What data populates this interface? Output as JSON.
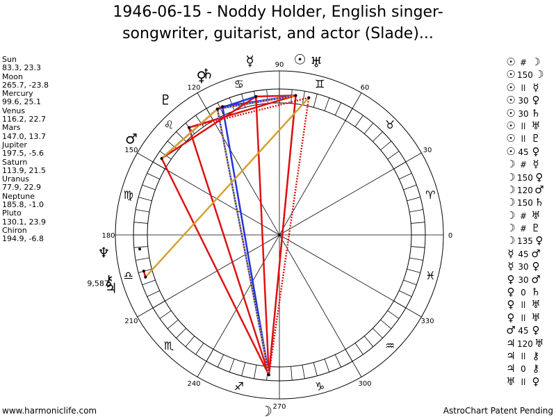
{
  "title_line1": "1946-06-15 - Noddy Holder, English singer-",
  "title_line2": "songwriter, guitarist, and actor (Slade)...",
  "planets": [
    {
      "name": "Sun",
      "glyph": "☉",
      "values": "83.3, 23.3",
      "lon": 83.3
    },
    {
      "name": "Moon",
      "glyph": "☽",
      "values": "265.7, -23.8",
      "lon": 265.7
    },
    {
      "name": "Mercury",
      "glyph": "☿",
      "values": "99.6, 25.1",
      "lon": 99.6
    },
    {
      "name": "Venus",
      "glyph": "♀",
      "values": "116.2, 22.7",
      "lon": 116.2
    },
    {
      "name": "Mars",
      "glyph": "♂",
      "values": "147.0, 13.7",
      "lon": 147.0
    },
    {
      "name": "Jupiter",
      "glyph": "♃",
      "values": "197.5, -5.6",
      "lon": 197.5
    },
    {
      "name": "Saturn",
      "glyph": "♄",
      "values": "113.9, 21.5",
      "lon": 113.9
    },
    {
      "name": "Uranus",
      "glyph": "♅",
      "values": "77.9, 22.9",
      "lon": 77.9
    },
    {
      "name": "Neptune",
      "glyph": "♆",
      "values": "185.8, -1.0",
      "lon": 185.8
    },
    {
      "name": "Pluto",
      "glyph": "♇",
      "values": "130.1, 23.9",
      "lon": 130.1
    },
    {
      "name": "Chiron",
      "glyph": "⚷",
      "values": "194.9, -6.8",
      "lon": 194.9
    }
  ],
  "chiron_label": "9,587",
  "degree_labels": [
    "0",
    "30",
    "60",
    "90",
    "120",
    "150",
    "180",
    "210",
    "240",
    "270",
    "300",
    "330"
  ],
  "zodiac": [
    {
      "sign": "aries",
      "glyph": "♈"
    },
    {
      "sign": "taurus",
      "glyph": "♉"
    },
    {
      "sign": "gemini",
      "glyph": "♊"
    },
    {
      "sign": "cancer",
      "glyph": "♋"
    },
    {
      "sign": "leo",
      "glyph": "♌"
    },
    {
      "sign": "virgo",
      "glyph": "♍"
    },
    {
      "sign": "libra",
      "glyph": "♎"
    },
    {
      "sign": "scorpio",
      "glyph": "♏"
    },
    {
      "sign": "sagittarius",
      "glyph": "♐"
    },
    {
      "sign": "capricorn",
      "glyph": "♑"
    },
    {
      "sign": "aquarius",
      "glyph": "♒"
    },
    {
      "sign": "pisces",
      "glyph": "♓"
    }
  ],
  "aspects": [
    {
      "p1": "☉",
      "sym": "#",
      "p2": "☽"
    },
    {
      "p1": "☉",
      "sym": "150",
      "p2": "☽"
    },
    {
      "p1": "☉",
      "sym": "ll",
      "p2": "☿"
    },
    {
      "p1": "☉",
      "sym": "30",
      "p2": "♀"
    },
    {
      "p1": "☉",
      "sym": "30",
      "p2": "♄"
    },
    {
      "p1": "☉",
      "sym": "ll",
      "p2": "♅"
    },
    {
      "p1": "☉",
      "sym": "ll",
      "p2": "♇"
    },
    {
      "p1": "☉",
      "sym": "45",
      "p2": "♀"
    },
    {
      "p1": "☽",
      "sym": "#",
      "p2": "☿"
    },
    {
      "p1": "☽",
      "sym": "150",
      "p2": "♀"
    },
    {
      "p1": "☽",
      "sym": "120",
      "p2": "♂"
    },
    {
      "p1": "☽",
      "sym": "150",
      "p2": "♄"
    },
    {
      "p1": "☽",
      "sym": "#",
      "p2": "♅"
    },
    {
      "p1": "☽",
      "sym": "#",
      "p2": "♇"
    },
    {
      "p1": "☽",
      "sym": "135",
      "p2": "♀"
    },
    {
      "p1": "☿",
      "sym": "45",
      "p2": "♂"
    },
    {
      "p1": "☿",
      "sym": "30",
      "p2": "♀"
    },
    {
      "p1": "♀",
      "sym": "30",
      "p2": "♂"
    },
    {
      "p1": "♀",
      "sym": "0",
      "p2": "♄"
    },
    {
      "p1": "♀",
      "sym": "ll",
      "p2": "♅"
    },
    {
      "p1": "♀",
      "sym": "ll",
      "p2": "♅"
    },
    {
      "p1": "♂",
      "sym": "45",
      "p2": "♀"
    },
    {
      "p1": "♃",
      "sym": "120",
      "p2": "♅"
    },
    {
      "p1": "♃",
      "sym": "ll",
      "p2": "⚷"
    },
    {
      "p1": "♃",
      "sym": "0",
      "p2": "⚷"
    },
    {
      "p1": "♅",
      "sym": "ll",
      "p2": "♀"
    }
  ],
  "aspect_lines": [
    {
      "a": "Sun",
      "b": "Moon",
      "color": "#dd1111",
      "dashed": false
    },
    {
      "a": "Sun",
      "b": "Moon",
      "color": "#dd1111",
      "dashed": true
    },
    {
      "a": "Sun",
      "b": "Mercury",
      "color": "#dd1111",
      "dashed": false
    },
    {
      "a": "Sun",
      "b": "Venus",
      "color": "#2233dd",
      "dashed": false
    },
    {
      "a": "Sun",
      "b": "Saturn",
      "color": "#2233dd",
      "dashed": false
    },
    {
      "a": "Sun",
      "b": "Pluto",
      "color": "#dd1111",
      "dashed": false
    },
    {
      "a": "Sun",
      "b": "Venus",
      "color": "#d4a030",
      "dashed": true
    },
    {
      "a": "Moon",
      "b": "Mercury",
      "color": "#dd1111",
      "dashed": false
    },
    {
      "a": "Moon",
      "b": "Venus",
      "color": "#2233dd",
      "dashed": false
    },
    {
      "a": "Moon",
      "b": "Mars",
      "color": "#dd1111",
      "dashed": false
    },
    {
      "a": "Moon",
      "b": "Saturn",
      "color": "#2233dd",
      "dashed": false
    },
    {
      "a": "Moon",
      "b": "Uranus",
      "color": "#dd1111",
      "dashed": true
    },
    {
      "a": "Moon",
      "b": "Pluto",
      "color": "#dd1111",
      "dashed": false
    },
    {
      "a": "Moon",
      "b": "Venus",
      "color": "#d4a030",
      "dashed": true
    },
    {
      "a": "Mercury",
      "b": "Mars",
      "color": "#dd1111",
      "dashed": false
    },
    {
      "a": "Mercury",
      "b": "Venus",
      "color": "#2233dd",
      "dashed": false
    },
    {
      "a": "Venus",
      "b": "Mars",
      "color": "#2233dd",
      "dashed": false
    },
    {
      "a": "Venus",
      "b": "Saturn",
      "color": "#dd1111",
      "dashed": false
    },
    {
      "a": "Mars",
      "b": "Venus",
      "color": "#d4a030",
      "dashed": false
    },
    {
      "a": "Jupiter",
      "b": "Uranus",
      "color": "#d4a030",
      "dashed": false
    },
    {
      "a": "Jupiter",
      "b": "Chiron",
      "color": "#dd1111",
      "dashed": false
    },
    {
      "a": "Uranus",
      "b": "Pluto",
      "color": "#dd1111",
      "dashed": true
    }
  ],
  "footer_left": "www.harmoniclife.com",
  "footer_right": "AstroChart Patent Pending"
}
